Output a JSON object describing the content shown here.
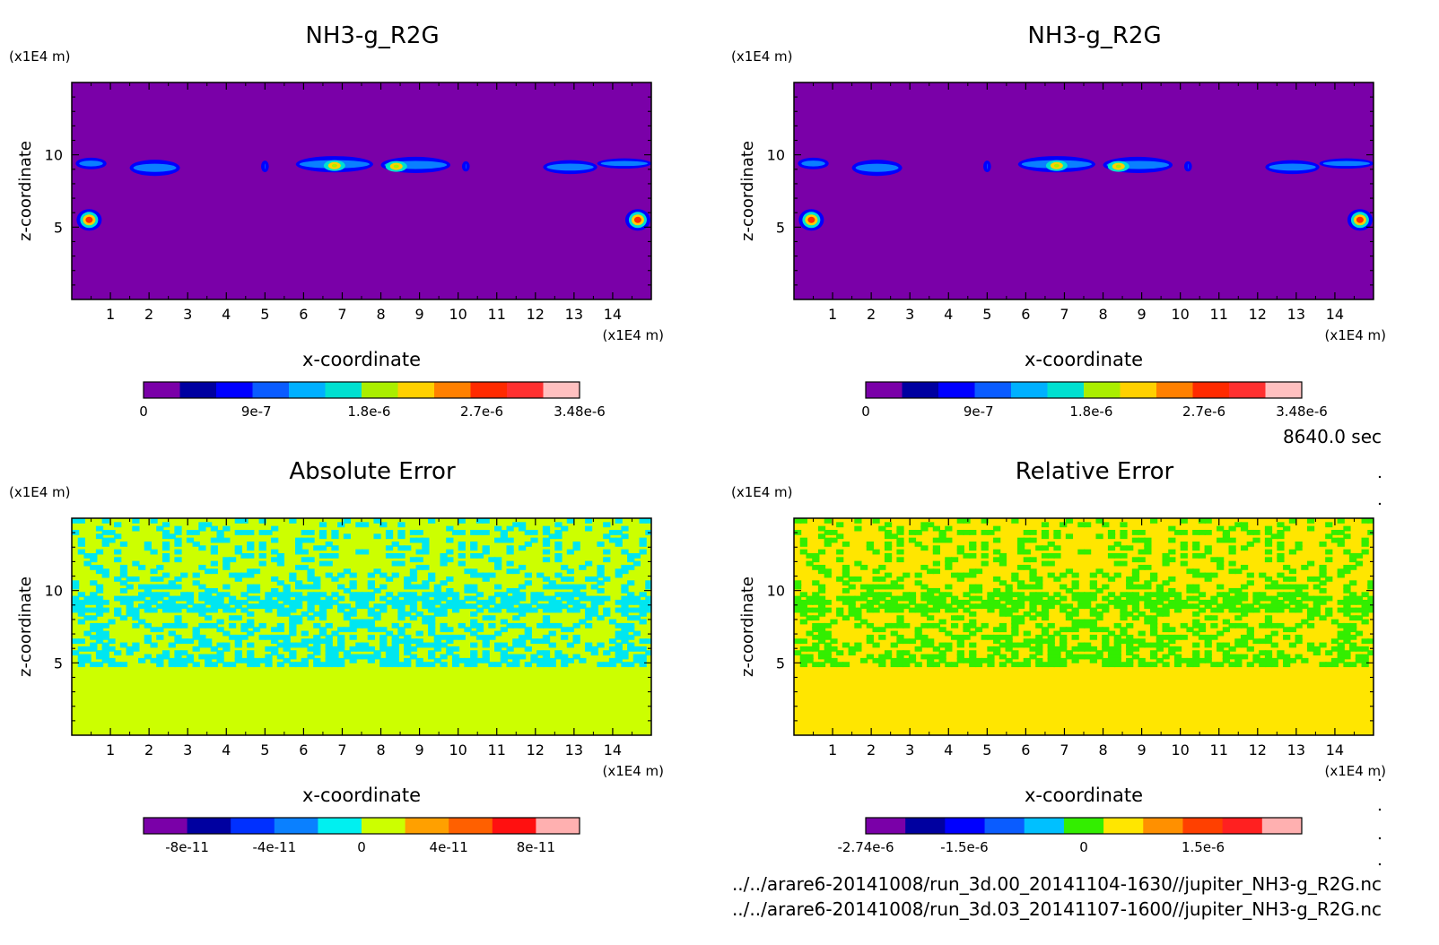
{
  "chart_data": [
    {
      "type": "heatmap",
      "title": "NH3-g_R2G",
      "xlabel": "x-coordinate",
      "ylabel": "z-coordinate",
      "x_unit": "(x1E4 m)",
      "y_unit": "(x1E4 m)",
      "x_ticks": [
        "1",
        "2",
        "3",
        "4",
        "5",
        "6",
        "7",
        "8",
        "9",
        "10",
        "11",
        "12",
        "13",
        "14"
      ],
      "y_ticks": [
        "5",
        "10"
      ],
      "xlim": [
        0,
        15
      ],
      "ylim": [
        0,
        15
      ],
      "colorbar": {
        "colors": [
          "#7a00a8",
          "#0000a0",
          "#0000ff",
          "#0a5cff",
          "#00b0ff",
          "#00e0d0",
          "#aaee00",
          "#ffd000",
          "#ff8000",
          "#ff2a00",
          "#ff3030",
          "#ffc0c0"
        ],
        "labels": [
          "0",
          "9e-7",
          "1.8e-6",
          "2.7e-6",
          "3.48e-6"
        ],
        "label_values": [
          0,
          9e-07,
          1.8e-06,
          2.7e-06,
          3.48e-06
        ],
        "range": [
          0,
          3.48e-06
        ]
      }
    },
    {
      "type": "heatmap",
      "title": "NH3-g_R2G",
      "xlabel": "x-coordinate",
      "ylabel": "z-coordinate",
      "x_unit": "(x1E4 m)",
      "y_unit": "(x1E4 m)",
      "x_ticks": [
        "1",
        "2",
        "3",
        "4",
        "5",
        "6",
        "7",
        "8",
        "9",
        "10",
        "11",
        "12",
        "13",
        "14"
      ],
      "y_ticks": [
        "5",
        "10"
      ],
      "xlim": [
        0,
        15
      ],
      "ylim": [
        0,
        15
      ],
      "colorbar": {
        "colors": [
          "#7a00a8",
          "#0000a0",
          "#0000ff",
          "#0a5cff",
          "#00b0ff",
          "#00e0d0",
          "#aaee00",
          "#ffd000",
          "#ff8000",
          "#ff2a00",
          "#ff3030",
          "#ffc0c0"
        ],
        "labels": [
          "0",
          "9e-7",
          "1.8e-6",
          "2.7e-6",
          "3.48e-6"
        ],
        "label_values": [
          0,
          9e-07,
          1.8e-06,
          2.7e-06,
          3.48e-06
        ],
        "range": [
          0,
          3.48e-06
        ]
      }
    },
    {
      "type": "heatmap",
      "title": "Absolute Error",
      "xlabel": "x-coordinate",
      "ylabel": "z-coordinate",
      "x_unit": "(x1E4 m)",
      "y_unit": "(x1E4 m)",
      "x_ticks": [
        "1",
        "2",
        "3",
        "4",
        "5",
        "6",
        "7",
        "8",
        "9",
        "10",
        "11",
        "12",
        "13",
        "14"
      ],
      "y_ticks": [
        "5",
        "10"
      ],
      "xlim": [
        0,
        15
      ],
      "ylim": [
        0,
        15
      ],
      "background_color": "#ccff00",
      "pattern_color": "#00e6f0",
      "colorbar": {
        "colors": [
          "#7a00a8",
          "#0000a0",
          "#0030ff",
          "#0a80ff",
          "#00f0f0",
          "#ccff00",
          "#ffa000",
          "#ff6000",
          "#ff1010",
          "#ffb0b0"
        ],
        "labels": [
          "-8e-11",
          "-4e-11",
          "0",
          "4e-11",
          "8e-11"
        ],
        "label_values": [
          -8e-11,
          -4e-11,
          0,
          4e-11,
          8e-11
        ],
        "range": [
          -1e-10,
          1e-10
        ]
      }
    },
    {
      "type": "heatmap",
      "title": "Relative Error",
      "xlabel": "x-coordinate",
      "ylabel": "z-coordinate",
      "x_unit": "(x1E4 m)",
      "y_unit": "(x1E4 m)",
      "x_ticks": [
        "1",
        "2",
        "3",
        "4",
        "5",
        "6",
        "7",
        "8",
        "9",
        "10",
        "11",
        "12",
        "13",
        "14"
      ],
      "y_ticks": [
        "5",
        "10"
      ],
      "xlim": [
        0,
        15
      ],
      "ylim": [
        0,
        15
      ],
      "background_color": "#ffe600",
      "pattern_color": "#33ee00",
      "colorbar": {
        "colors": [
          "#7a00a8",
          "#0000a0",
          "#0000ff",
          "#0a5cff",
          "#00c0ff",
          "#33ee00",
          "#ffe600",
          "#ff9000",
          "#ff4000",
          "#ff2020",
          "#ffb0b0"
        ],
        "labels": [
          "-2.74e-6",
          "-1.5e-6",
          "0",
          "1.5e-6"
        ],
        "label_values": [
          -2.74e-06,
          -1.5e-06,
          0,
          1.5e-06
        ],
        "range": [
          -2.74e-06,
          2.74e-06
        ]
      }
    }
  ],
  "time_label": "8640.0 sec",
  "file_paths": [
    "../../arare6-20141008/run_3d.00_20141104-1630//jupiter_NH3-g_R2G.nc",
    "../../arare6-20141008/run_3d.03_20141107-1600//jupiter_NH3-g_R2G.nc"
  ]
}
